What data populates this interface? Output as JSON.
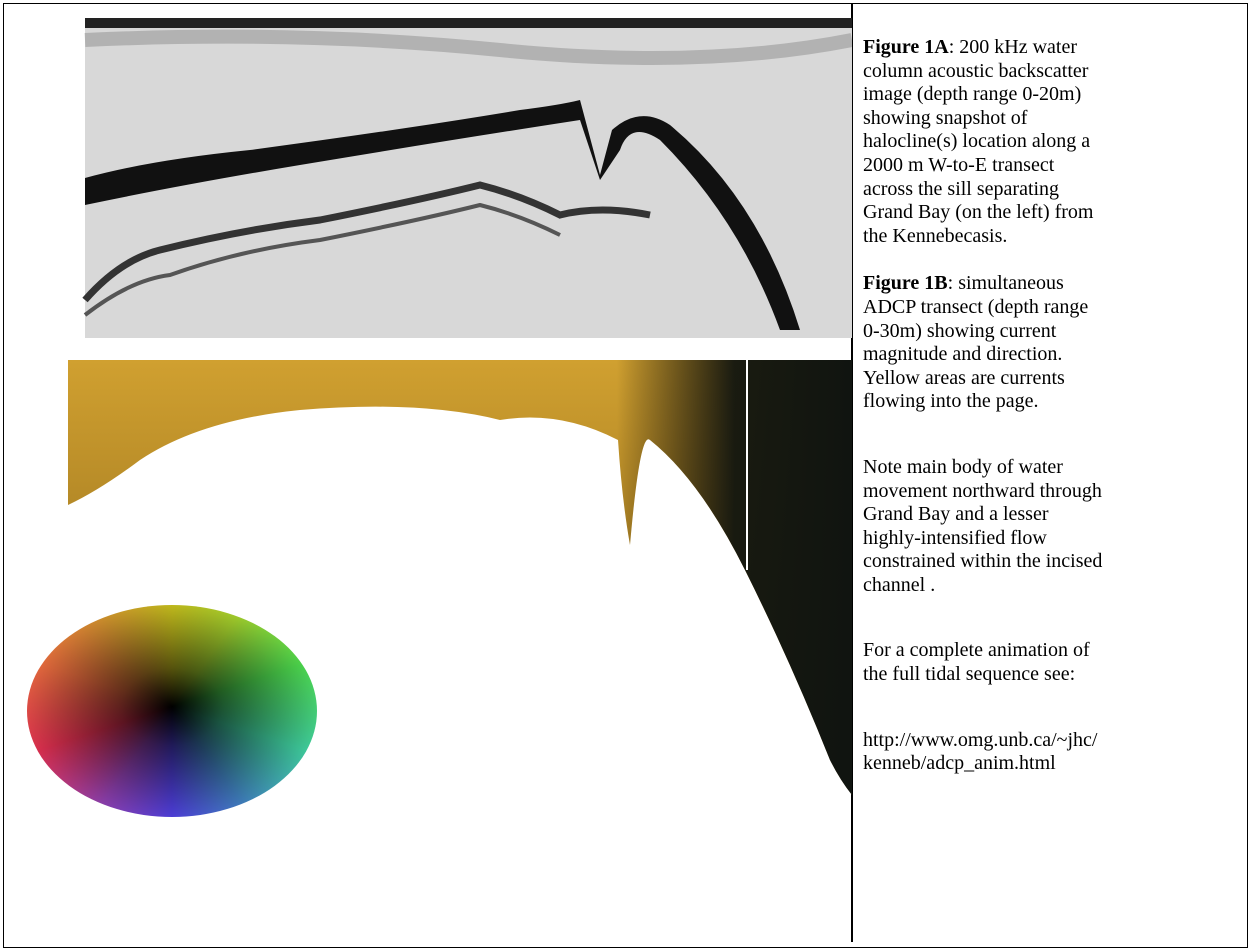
{
  "caption": [
    {
      "label": "Figure 1A",
      "lines": [
        ": 200 kHz water",
        "column acoustic backscatter",
        "image (depth range 0-20m)",
        "showing snapshot of",
        "halocline(s) location along a",
        "2000 m W-to-E transect",
        "across the sill separating",
        "Grand Bay (on the left) from",
        "the Kennebecasis."
      ]
    },
    {
      "label": "Figure 1B",
      "lines": [
        ": simultaneous",
        "ADCP transect  (depth range",
        "0-30m) showing current",
        "magnitude and direction.",
        "Yellow areas are currents",
        "flowing into the page."
      ]
    },
    {
      "lines": [
        "Note main body of water",
        "movement northward through",
        "Grand Bay and a lesser",
        "highly-intensified flow",
        "constrained within the incised",
        "channel ."
      ]
    },
    {
      "lines": [
        "For a complete animation of",
        "the full tidal sequence see:"
      ]
    },
    {
      "lines": [
        "http://www.omg.unb.ca/~jhc/",
        "kenneb/adcp_anim.html"
      ]
    }
  ]
}
